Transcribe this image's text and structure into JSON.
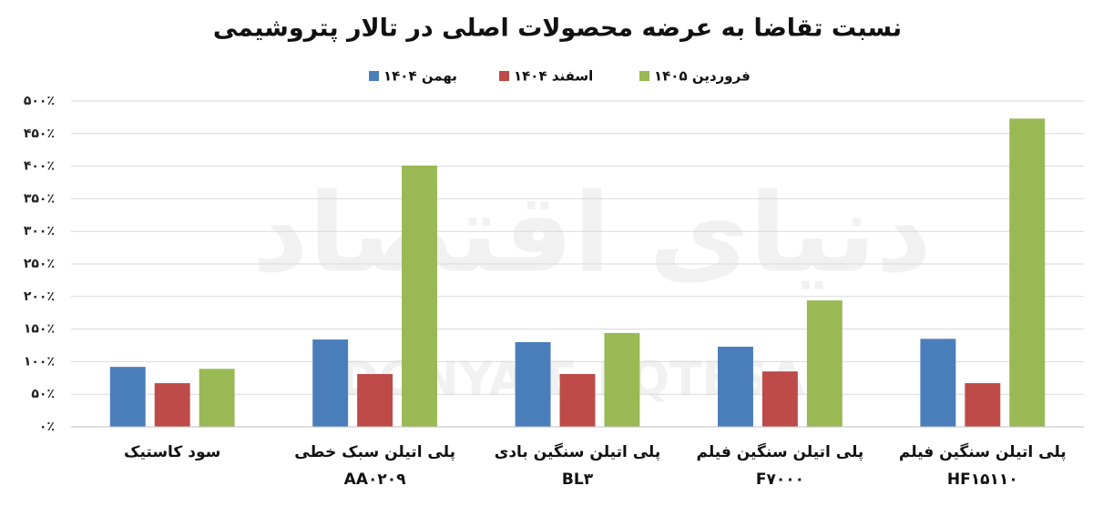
{
  "chart_data": {
    "type": "bar",
    "title": "نسبت تقاضا به عرضه محصولات اصلی در تالار پتروشیمی",
    "watermark": [
      "دنیای اقتصاد",
      "DONYA-E-EQTESAD"
    ],
    "categories": [
      [
        "سود کاستیک"
      ],
      [
        "پلی اتیلن سبک خطی",
        "AA۰۲۰۹"
      ],
      [
        "پلی اتیلن سنگین بادی",
        "BL۳"
      ],
      [
        "پلی اتیلن سنگین فیلم",
        "F۷۰۰۰"
      ],
      [
        "پلی اتیلن سنگین فیلم",
        "HF۱۵۱۱۰"
      ]
    ],
    "series": [
      {
        "name": "بهمن ۱۴۰۴",
        "color": "#4a7ebb",
        "values": [
          92,
          134,
          130,
          123,
          135
        ]
      },
      {
        "name": "اسفند ۱۴۰۴",
        "color": "#be4b48",
        "values": [
          67,
          81,
          81,
          85,
          67
        ]
      },
      {
        "name": "فروردین ۱۴۰۵",
        "color": "#98b954",
        "values": [
          89,
          401,
          144,
          194,
          473
        ]
      }
    ],
    "ylim": [
      0,
      500
    ],
    "yticks": [
      {
        "value": 0,
        "label": "۰٪"
      },
      {
        "value": 50,
        "label": "۵۰٪"
      },
      {
        "value": 100,
        "label": "۱۰۰٪"
      },
      {
        "value": 150,
        "label": "۱۵۰٪"
      },
      {
        "value": 200,
        "label": "۲۰۰٪"
      },
      {
        "value": 250,
        "label": "۲۵۰٪"
      },
      {
        "value": 300,
        "label": "۳۰۰٪"
      },
      {
        "value": 350,
        "label": "۳۵۰٪"
      },
      {
        "value": 400,
        "label": "۴۰۰٪"
      },
      {
        "value": 450,
        "label": "۴۵۰٪"
      },
      {
        "value": 500,
        "label": "۵۰۰٪"
      }
    ],
    "grid": true,
    "legend": "top"
  }
}
